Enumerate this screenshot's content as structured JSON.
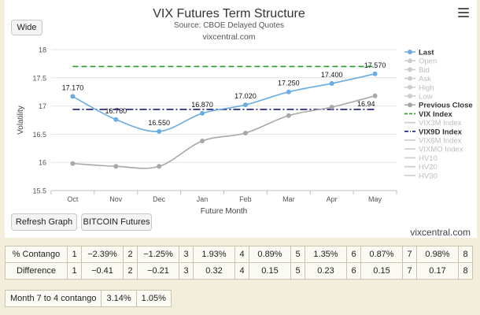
{
  "header": {
    "title": "VIX Futures Term Structure",
    "subtitle": "Source: CBOE Delayed Quotes",
    "site": "vixcentral.com"
  },
  "buttons": {
    "wide": "Wide",
    "refresh": "Refresh Graph",
    "bitcoin": "BITCOIN Futures"
  },
  "footer_site": "vixcentral.com",
  "chart_data": {
    "type": "line",
    "title": "VIX Futures Term Structure",
    "subtitle": "Source: CBOE Delayed Quotes",
    "xlabel": "Future Month",
    "ylabel": "Volatility",
    "categories": [
      "Oct",
      "Nov",
      "Dec",
      "Jan",
      "Feb",
      "Mar",
      "Apr",
      "May"
    ],
    "ylim": [
      15.5,
      18
    ],
    "yticks": [
      "15.5",
      "16",
      "16.5",
      "17",
      "17.5",
      "18"
    ],
    "grid": true,
    "legend_position": "right",
    "series": [
      {
        "name": "Last",
        "color": "#6aade4",
        "style": "solid-markers",
        "values": [
          17.17,
          16.76,
          16.55,
          16.87,
          17.02,
          17.25,
          17.4,
          17.57
        ],
        "labels": [
          "17.170",
          "16.760",
          "16.550",
          "16.870",
          "17.020",
          "17.250",
          "17.400",
          "17.570"
        ]
      },
      {
        "name": "Previous Close",
        "color": "#a8a8a8",
        "style": "solid-markers",
        "values": [
          15.98,
          15.93,
          15.93,
          16.38,
          16.52,
          16.83,
          16.98,
          17.18
        ]
      },
      {
        "name": "VIX Index",
        "color": "#2a9a2a",
        "style": "dashed",
        "level": 17.7
      },
      {
        "name": "VIX9D Index",
        "color": "#1a1a7a",
        "style": "dashdot",
        "level": 16.94,
        "label": "16.94"
      }
    ],
    "legend": [
      {
        "name": "Last",
        "color": "#6aade4",
        "active": true
      },
      {
        "name": "Open",
        "color": "#cccccc",
        "active": false
      },
      {
        "name": "Bid",
        "color": "#cccccc",
        "active": false
      },
      {
        "name": "Ask",
        "color": "#cccccc",
        "active": false
      },
      {
        "name": "High",
        "color": "#cccccc",
        "active": false
      },
      {
        "name": "Low",
        "color": "#cccccc",
        "active": false
      },
      {
        "name": "Previous Close",
        "color": "#a8a8a8",
        "active": true
      },
      {
        "name": "VIX Index",
        "color": "#2a9a2a",
        "active": true
      },
      {
        "name": "VIX3M Index",
        "color": "#cccccc",
        "active": false
      },
      {
        "name": "VIX9D Index",
        "color": "#1a1a7a",
        "active": true
      },
      {
        "name": "VIX6M Index",
        "color": "#cccccc",
        "active": false
      },
      {
        "name": "VIXMO Index",
        "color": "#cccccc",
        "active": false
      },
      {
        "name": "HV10",
        "color": "#cccccc",
        "active": false
      },
      {
        "name": "HV20",
        "color": "#cccccc",
        "active": false
      },
      {
        "name": "HV30",
        "color": "#cccccc",
        "active": false
      }
    ]
  },
  "stats_table": {
    "rows": [
      {
        "label": "% Contango",
        "cells": [
          {
            "idx": "1",
            "val": "−2.39%"
          },
          {
            "idx": "2",
            "val": "−1.25%"
          },
          {
            "idx": "3",
            "val": "1.93%"
          },
          {
            "idx": "4",
            "val": "0.89%"
          },
          {
            "idx": "5",
            "val": "1.35%"
          },
          {
            "idx": "6",
            "val": "0.87%"
          },
          {
            "idx": "7",
            "val": "0.98%"
          }
        ],
        "last_idx": "8"
      },
      {
        "label": "Difference",
        "cells": [
          {
            "idx": "1",
            "val": "−0.41"
          },
          {
            "idx": "2",
            "val": "−0.21"
          },
          {
            "idx": "3",
            "val": "0.32"
          },
          {
            "idx": "4",
            "val": "0.15"
          },
          {
            "idx": "5",
            "val": "0.23"
          },
          {
            "idx": "6",
            "val": "0.15"
          },
          {
            "idx": "7",
            "val": "0.17"
          }
        ],
        "last_idx": "8"
      }
    ]
  },
  "contango_table": {
    "label": "Month 7 to 4 contango",
    "values": [
      "3.14%",
      "1.05%"
    ]
  }
}
